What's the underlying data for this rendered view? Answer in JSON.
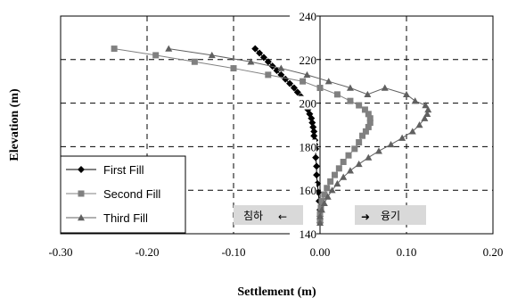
{
  "chart_data": {
    "type": "scatter",
    "title": "",
    "xlabel": "Settlement (m)",
    "ylabel": "Elevation (m)",
    "xlim": [
      -0.3,
      0.2
    ],
    "ylim": [
      140,
      240
    ],
    "xticks": [
      "-0.30",
      "-0.20",
      "-0.10",
      "0.00",
      "0.10",
      "0.20"
    ],
    "yticks": [
      "140",
      "160",
      "180",
      "200",
      "220",
      "240"
    ],
    "grid": "dashed",
    "legend_position": "bottom-left",
    "series": [
      {
        "name": "First Fill",
        "marker": "diamond",
        "color": "#000000",
        "points": [
          [
            -0.075,
            225
          ],
          [
            -0.07,
            223
          ],
          [
            -0.065,
            221
          ],
          [
            -0.06,
            219
          ],
          [
            -0.055,
            217
          ],
          [
            -0.05,
            215
          ],
          [
            -0.045,
            213
          ],
          [
            -0.04,
            211
          ],
          [
            -0.035,
            209
          ],
          [
            -0.03,
            207
          ],
          [
            -0.026,
            205
          ],
          [
            -0.022,
            203
          ],
          [
            -0.019,
            201
          ],
          [
            -0.016,
            199
          ],
          [
            -0.014,
            197
          ],
          [
            -0.012,
            195
          ],
          [
            -0.01,
            193
          ],
          [
            -0.009,
            191
          ],
          [
            -0.008,
            189
          ],
          [
            -0.007,
            187
          ],
          [
            -0.007,
            185
          ],
          [
            -0.006,
            183
          ],
          [
            -0.006,
            181
          ],
          [
            -0.005,
            179
          ],
          [
            -0.005,
            175
          ],
          [
            -0.004,
            171
          ],
          [
            -0.004,
            167
          ],
          [
            -0.003,
            163
          ],
          [
            -0.002,
            159
          ],
          [
            -0.001,
            155
          ],
          [
            0.0,
            151
          ],
          [
            0.0,
            148
          ],
          [
            0.0,
            145
          ]
        ]
      },
      {
        "name": "Second Fill",
        "marker": "square",
        "color": "#808080",
        "points": [
          [
            -0.238,
            225
          ],
          [
            -0.19,
            222
          ],
          [
            -0.145,
            219
          ],
          [
            -0.1,
            216
          ],
          [
            -0.06,
            213
          ],
          [
            -0.02,
            210
          ],
          [
            0.0,
            207
          ],
          [
            0.02,
            204
          ],
          [
            0.035,
            201
          ],
          [
            0.045,
            199
          ],
          [
            0.052,
            197
          ],
          [
            0.056,
            195
          ],
          [
            0.058,
            193
          ],
          [
            0.058,
            191
          ],
          [
            0.056,
            189
          ],
          [
            0.053,
            187
          ],
          [
            0.049,
            185
          ],
          [
            0.045,
            182
          ],
          [
            0.04,
            179
          ],
          [
            0.033,
            176
          ],
          [
            0.027,
            173
          ],
          [
            0.022,
            170
          ],
          [
            0.017,
            167
          ],
          [
            0.012,
            164
          ],
          [
            0.008,
            161
          ],
          [
            0.005,
            158
          ],
          [
            0.002,
            155
          ],
          [
            0.001,
            152
          ],
          [
            0.0,
            149
          ],
          [
            0.0,
            146
          ]
        ]
      },
      {
        "name": "Third Fill",
        "marker": "triangle",
        "color": "#606060",
        "points": [
          [
            -0.175,
            225
          ],
          [
            -0.125,
            222
          ],
          [
            -0.08,
            219
          ],
          [
            -0.045,
            216
          ],
          [
            -0.015,
            213
          ],
          [
            0.01,
            210
          ],
          [
            0.035,
            207
          ],
          [
            0.055,
            204
          ],
          [
            0.075,
            207
          ],
          [
            0.1,
            204
          ],
          [
            0.11,
            201
          ],
          [
            0.122,
            199
          ],
          [
            0.125,
            197
          ],
          [
            0.124,
            195
          ],
          [
            0.121,
            193
          ],
          [
            0.115,
            190
          ],
          [
            0.107,
            187
          ],
          [
            0.095,
            184
          ],
          [
            0.082,
            181
          ],
          [
            0.068,
            178
          ],
          [
            0.056,
            175
          ],
          [
            0.045,
            172
          ],
          [
            0.035,
            169
          ],
          [
            0.027,
            166
          ],
          [
            0.02,
            163
          ],
          [
            0.014,
            160
          ],
          [
            0.009,
            157
          ],
          [
            0.005,
            154
          ],
          [
            0.002,
            151
          ],
          [
            0.0,
            148
          ],
          [
            0.0,
            145
          ]
        ]
      }
    ],
    "annotations": [
      {
        "text": "침하",
        "arrow": "←",
        "arrow_side": "right"
      },
      {
        "text": "융기",
        "arrow": "➜",
        "arrow_side": "left"
      }
    ]
  }
}
